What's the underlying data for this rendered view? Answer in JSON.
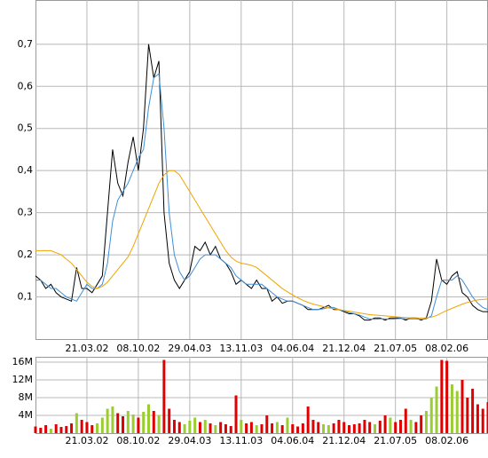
{
  "chart_data": [
    {
      "type": "line",
      "categories": [
        null,
        null,
        null,
        null,
        null,
        null,
        null,
        null,
        null,
        null,
        "21.03.02",
        null,
        null,
        null,
        null,
        null,
        null,
        null,
        null,
        null,
        "08.10.02",
        null,
        null,
        null,
        null,
        null,
        null,
        null,
        null,
        null,
        "29.04.03",
        null,
        null,
        null,
        null,
        null,
        null,
        null,
        null,
        null,
        "13.11.03",
        null,
        null,
        null,
        null,
        null,
        null,
        null,
        null,
        null,
        "04.06.04",
        null,
        null,
        null,
        null,
        null,
        null,
        null,
        null,
        null,
        "21.12.04",
        null,
        null,
        null,
        null,
        null,
        null,
        null,
        null,
        null,
        "21.07.05",
        null,
        null,
        null,
        null,
        null,
        null,
        null,
        null,
        null,
        "08.02.06",
        null,
        null,
        null,
        null,
        null,
        null,
        null,
        null
      ],
      "series": [
        {
          "color": "#000000",
          "values": [
            0.15,
            0.14,
            0.12,
            0.13,
            0.11,
            0.1,
            0.095,
            0.09,
            0.17,
            0.12,
            0.12,
            0.11,
            0.13,
            0.15,
            0.3,
            0.45,
            0.37,
            0.34,
            0.42,
            0.48,
            0.4,
            0.5,
            0.7,
            0.62,
            0.66,
            0.3,
            0.18,
            0.14,
            0.12,
            0.14,
            0.16,
            0.22,
            0.21,
            0.23,
            0.2,
            0.22,
            0.19,
            0.18,
            0.16,
            0.13,
            0.14,
            0.13,
            0.12,
            0.14,
            0.12,
            0.12,
            0.09,
            0.1,
            0.085,
            0.09,
            0.09,
            0.085,
            0.08,
            0.07,
            0.07,
            0.07,
            0.075,
            0.08,
            0.07,
            0.07,
            0.065,
            0.06,
            0.06,
            0.055,
            0.045,
            0.045,
            0.05,
            0.05,
            0.045,
            0.05,
            0.05,
            0.05,
            0.045,
            0.05,
            0.05,
            0.045,
            0.05,
            0.09,
            0.19,
            0.14,
            0.13,
            0.15,
            0.16,
            0.11,
            0.1,
            0.08,
            0.07,
            0.065,
            0.065
          ]
        },
        {
          "color": "#3f8fd8",
          "values": [
            0.14,
            0.14,
            0.13,
            0.12,
            0.12,
            0.11,
            0.1,
            0.095,
            0.09,
            0.11,
            0.13,
            0.12,
            0.12,
            0.13,
            0.18,
            0.28,
            0.33,
            0.35,
            0.37,
            0.4,
            0.43,
            0.45,
            0.55,
            0.62,
            0.63,
            0.5,
            0.3,
            0.2,
            0.16,
            0.14,
            0.15,
            0.17,
            0.19,
            0.2,
            0.2,
            0.2,
            0.19,
            0.18,
            0.17,
            0.15,
            0.14,
            0.13,
            0.13,
            0.13,
            0.13,
            0.12,
            0.11,
            0.1,
            0.095,
            0.09,
            0.09,
            0.085,
            0.08,
            0.075,
            0.07,
            0.07,
            0.072,
            0.075,
            0.075,
            0.07,
            0.067,
            0.063,
            0.06,
            0.057,
            0.052,
            0.048,
            0.047,
            0.048,
            0.048,
            0.047,
            0.048,
            0.049,
            0.048,
            0.048,
            0.048,
            0.047,
            0.048,
            0.055,
            0.1,
            0.14,
            0.14,
            0.14,
            0.15,
            0.14,
            0.12,
            0.1,
            0.085,
            0.075,
            0.07
          ]
        },
        {
          "color": "#f0a400",
          "values": [
            0.21,
            0.21,
            0.21,
            0.21,
            0.205,
            0.2,
            0.19,
            0.18,
            0.165,
            0.15,
            0.135,
            0.125,
            0.12,
            0.125,
            0.135,
            0.15,
            0.165,
            0.18,
            0.195,
            0.22,
            0.25,
            0.28,
            0.31,
            0.34,
            0.37,
            0.39,
            0.4,
            0.4,
            0.39,
            0.37,
            0.35,
            0.33,
            0.31,
            0.29,
            0.27,
            0.25,
            0.23,
            0.21,
            0.195,
            0.185,
            0.18,
            0.178,
            0.175,
            0.17,
            0.16,
            0.15,
            0.14,
            0.13,
            0.12,
            0.112,
            0.105,
            0.098,
            0.092,
            0.087,
            0.083,
            0.08,
            0.077,
            0.074,
            0.072,
            0.07,
            0.068,
            0.066,
            0.064,
            0.062,
            0.06,
            0.058,
            0.057,
            0.056,
            0.055,
            0.054,
            0.053,
            0.052,
            0.051,
            0.05,
            0.05,
            0.05,
            0.05,
            0.052,
            0.056,
            0.062,
            0.068,
            0.073,
            0.078,
            0.083,
            0.087,
            0.09,
            0.093,
            0.094,
            0.095
          ]
        }
      ],
      "ylim": [
        0,
        0.805
      ],
      "yticks": [
        {
          "value": 0.1,
          "label": "0,1"
        },
        {
          "value": 0.2,
          "label": "0,2"
        },
        {
          "value": 0.3,
          "label": "0,3"
        },
        {
          "value": 0.4,
          "label": "0,4"
        },
        {
          "value": 0.5,
          "label": "0,5"
        },
        {
          "value": 0.6,
          "label": "0,6"
        },
        {
          "value": 0.7,
          "label": "0,7"
        }
      ],
      "grid": true
    },
    {
      "type": "bar",
      "categories": [
        null,
        null,
        null,
        null,
        null,
        null,
        null,
        null,
        null,
        null,
        "21.03.02",
        null,
        null,
        null,
        null,
        null,
        null,
        null,
        null,
        null,
        "08.10.02",
        null,
        null,
        null,
        null,
        null,
        null,
        null,
        null,
        null,
        "29.04.03",
        null,
        null,
        null,
        null,
        null,
        null,
        null,
        null,
        null,
        "13.11.03",
        null,
        null,
        null,
        null,
        null,
        null,
        null,
        null,
        null,
        "04.06.04",
        null,
        null,
        null,
        null,
        null,
        null,
        null,
        null,
        null,
        "21.12.04",
        null,
        null,
        null,
        null,
        null,
        null,
        null,
        null,
        null,
        "21.07.05",
        null,
        null,
        null,
        null,
        null,
        null,
        null,
        null,
        null,
        "08.02.06",
        null,
        null,
        null,
        null,
        null,
        null,
        null,
        null
      ],
      "values": [
        1500000,
        1200000,
        1800000,
        1000000,
        2000000,
        1400000,
        1600000,
        2200000,
        4500000,
        3000000,
        2500000,
        1800000,
        2200000,
        3500000,
        5500000,
        6000000,
        4500000,
        3800000,
        5000000,
        4200000,
        3500000,
        4800000,
        6500000,
        5000000,
        4000000,
        16500000,
        5500000,
        3000000,
        2500000,
        2000000,
        2800000,
        3500000,
        2500000,
        3000000,
        2200000,
        1800000,
        2500000,
        2000000,
        1600000,
        8500000,
        3000000,
        2200000,
        2500000,
        1800000,
        2000000,
        4000000,
        2200000,
        2500000,
        1800000,
        3500000,
        2000000,
        1500000,
        2200000,
        6000000,
        3000000,
        2500000,
        2000000,
        1800000,
        2200000,
        3000000,
        2500000,
        1800000,
        2000000,
        2200000,
        3000000,
        2500000,
        2000000,
        2800000,
        4000000,
        3500000,
        2500000,
        3000000,
        5500000,
        3000000,
        2500000,
        4000000,
        5000000,
        8000000,
        10500000,
        16500000,
        16300000,
        11000000,
        9500000,
        12000000,
        8000000,
        10000000,
        6500000,
        5500000,
        7000000
      ],
      "color": "#e00000",
      "up_color": "#9acd32",
      "ylim": [
        0,
        17200000
      ],
      "yticks": [
        {
          "value": 4000000,
          "label": "4M"
        },
        {
          "value": 8000000,
          "label": "8M"
        },
        {
          "value": 12000000,
          "label": "12M"
        },
        {
          "value": 16000000,
          "label": "16M"
        }
      ],
      "grid": true
    }
  ]
}
